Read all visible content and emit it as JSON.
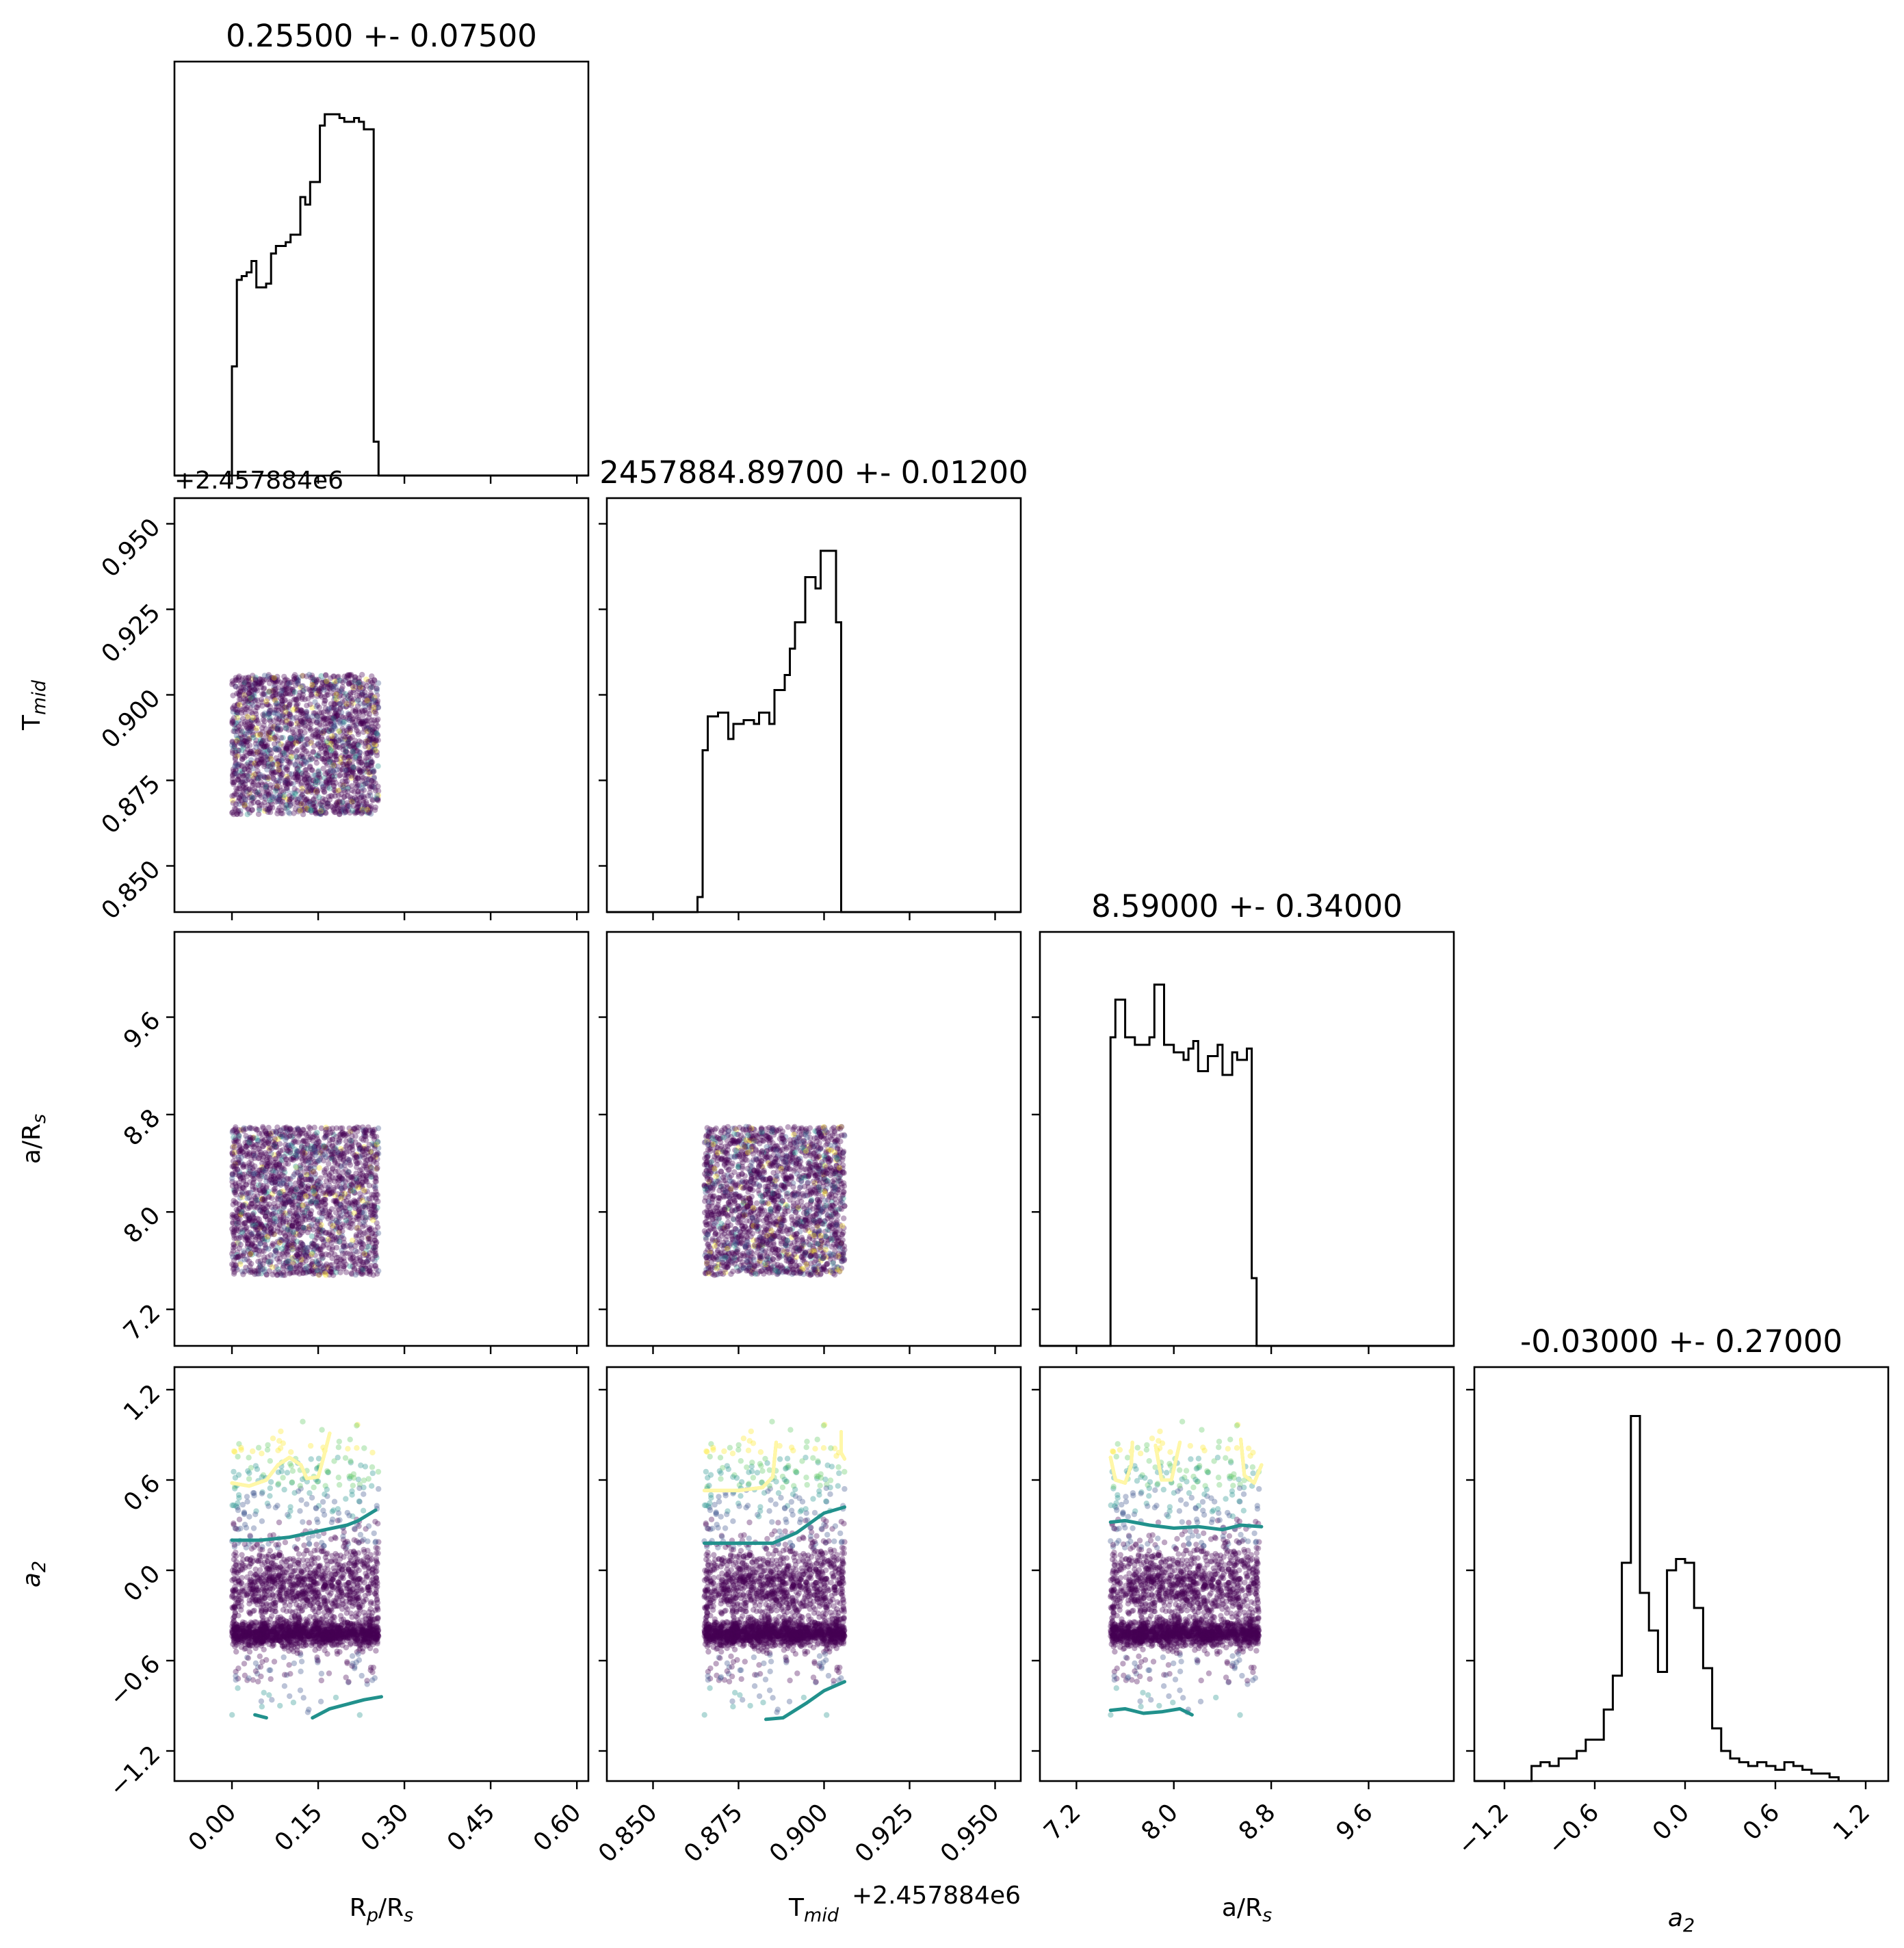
{
  "chart_data": {
    "type": "scatter",
    "subtype": "corner-plot",
    "parameters": [
      {
        "key": "rp",
        "label": "R",
        "label_sub": "p",
        "label_tail": "/R",
        "label_sub2": "s",
        "range": [
          -0.1,
          0.62
        ],
        "ticks": [
          "0.00",
          "0.15",
          "0.30",
          "0.45",
          "0.60"
        ],
        "tick_values": [
          0,
          0.15,
          0.3,
          0.45,
          0.6
        ],
        "title": "0.25500 +- 0.07500",
        "sample_range": [
          0.0,
          0.255
        ]
      },
      {
        "key": "tmid",
        "label": "T",
        "label_sub": "mid",
        "label_tail": "",
        "label_sub2": "",
        "range": [
          0.8365,
          0.9575
        ],
        "ticks": [
          "0.850",
          "0.875",
          "0.900",
          "0.925",
          "0.950"
        ],
        "tick_values": [
          0.85,
          0.875,
          0.9,
          0.925,
          0.95
        ],
        "offset": "+2.457884e6",
        "title": "2457884.89700 +- 0.01200",
        "sample_range": [
          0.865,
          0.906
        ]
      },
      {
        "key": "ars",
        "label": "a/R",
        "label_sub": "s",
        "label_tail": "",
        "label_sub2": "",
        "range": [
          6.9,
          10.3
        ],
        "ticks": [
          "7.2",
          "8.0",
          "8.8",
          "9.6"
        ],
        "tick_values": [
          7.2,
          8.0,
          8.8,
          9.6
        ],
        "title": "8.59000 +- 0.34000",
        "sample_range": [
          7.48,
          8.7
        ]
      },
      {
        "key": "a2",
        "label": "a",
        "label_sub": "2",
        "label_tail": "",
        "label_sub2": "",
        "label_italic": true,
        "range": [
          -1.4,
          1.35
        ],
        "ticks": [
          "−1.2",
          "−0.6",
          "0.0",
          "0.6",
          "1.2"
        ],
        "tick_values": [
          -1.2,
          -0.6,
          0,
          0.6,
          1.2
        ],
        "title": "-0.03000 +- 0.27000",
        "sample_range": [
          -0.97,
          0.99
        ]
      }
    ],
    "histograms": {
      "rp": {
        "bins": [
          0,
          0.0085,
          0.017,
          0.0255,
          0.034,
          0.0425,
          0.051,
          0.0595,
          0.068,
          0.0765,
          0.085,
          0.0935,
          0.102,
          0.1105,
          0.119,
          0.1275,
          0.136,
          0.1445,
          0.153,
          0.1615,
          0.17,
          0.1785,
          0.187,
          0.1955,
          0.204,
          0.2125,
          0.221,
          0.2295,
          0.238,
          0.2465,
          0.255,
          0.2635,
          0.272
        ],
        "counts": [
          0.29,
          0.52,
          0.53,
          0.54,
          0.57,
          0.5,
          0.5,
          0.51,
          0.59,
          0.61,
          0.61,
          0.62,
          0.64,
          0.64,
          0.74,
          0.72,
          0.78,
          0.78,
          0.93,
          0.96,
          0.96,
          0.96,
          0.95,
          0.94,
          0.94,
          0.95,
          0.94,
          0.92,
          0.92,
          0.09,
          0.0,
          0.0
        ]
      },
      "tmid": {
        "bins": [
          0.863,
          0.8645,
          0.866,
          0.8675,
          0.869,
          0.8705,
          0.872,
          0.8735,
          0.875,
          0.8765,
          0.878,
          0.8795,
          0.881,
          0.8825,
          0.884,
          0.8855,
          0.887,
          0.8885,
          0.89,
          0.8915,
          0.893,
          0.8945,
          0.896,
          0.8975,
          0.899,
          0.9005,
          0.902,
          0.9035,
          0.905,
          0.9065
        ],
        "counts": [
          0.04,
          0.43,
          0.52,
          0.52,
          0.53,
          0.53,
          0.46,
          0.5,
          0.5,
          0.51,
          0.51,
          0.5,
          0.53,
          0.53,
          0.5,
          0.59,
          0.59,
          0.63,
          0.7,
          0.77,
          0.77,
          0.89,
          0.89,
          0.86,
          0.96,
          0.96,
          0.96,
          0.77,
          0.0
        ]
      },
      "ars": {
        "bins": [
          7.48,
          7.52,
          7.56,
          7.6,
          7.64,
          7.68,
          7.72,
          7.76,
          7.8,
          7.84,
          7.88,
          7.92,
          7.96,
          8.0,
          8.04,
          8.08,
          8.12,
          8.16,
          8.2,
          8.24,
          8.28,
          8.32,
          8.36,
          8.4,
          8.44,
          8.48,
          8.52,
          8.56,
          8.6,
          8.64,
          8.68,
          8.72
        ],
        "counts": [
          0.82,
          0.92,
          0.92,
          0.82,
          0.82,
          0.8,
          0.8,
          0.8,
          0.82,
          0.96,
          0.96,
          0.8,
          0.8,
          0.78,
          0.78,
          0.76,
          0.79,
          0.81,
          0.73,
          0.73,
          0.77,
          0.77,
          0.8,
          0.72,
          0.72,
          0.78,
          0.76,
          0.76,
          0.79,
          0.18,
          0.0
        ]
      },
      "a2": {
        "bins": [
          -1.08,
          -1.02,
          -0.96,
          -0.9,
          -0.84,
          -0.78,
          -0.72,
          -0.66,
          -0.6,
          -0.54,
          -0.48,
          -0.42,
          -0.36,
          -0.3,
          -0.24,
          -0.18,
          -0.12,
          -0.06,
          0.0,
          0.06,
          0.12,
          0.18,
          0.24,
          0.3,
          0.36,
          0.42,
          0.48,
          0.54,
          0.6,
          0.66,
          0.72,
          0.78,
          0.84,
          0.9,
          0.96,
          1.02
        ],
        "counts": [
          0.0,
          0.04,
          0.05,
          0.04,
          0.06,
          0.06,
          0.08,
          0.11,
          0.11,
          0.19,
          0.28,
          0.58,
          0.97,
          0.5,
          0.4,
          0.29,
          0.56,
          0.59,
          0.58,
          0.46,
          0.3,
          0.14,
          0.08,
          0.06,
          0.05,
          0.04,
          0.05,
          0.04,
          0.03,
          0.05,
          0.04,
          0.03,
          0.02,
          0.02,
          0.01,
          0.0
        ]
      }
    },
    "scatter_colormap": [
      "#440154",
      "#3b528b",
      "#21918c",
      "#5ec962",
      "#fde725"
    ],
    "contours": {
      "rp-a2": {
        "yellow": [
          [
            [
              0.0,
              0.58
            ],
            [
              0.03,
              0.56
            ],
            [
              0.06,
              0.6
            ],
            [
              0.08,
              0.7
            ],
            [
              0.1,
              0.75
            ],
            [
              0.12,
              0.7
            ],
            [
              0.13,
              0.61
            ],
            [
              0.15,
              0.62
            ],
            [
              0.16,
              0.76
            ],
            [
              0.17,
              0.91
            ]
          ]
        ],
        "teal_upper": [
          [
            [
              0.0,
              0.2
            ],
            [
              0.05,
              0.2
            ],
            [
              0.1,
              0.22
            ],
            [
              0.15,
              0.26
            ],
            [
              0.2,
              0.3
            ],
            [
              0.22,
              0.33
            ],
            [
              0.25,
              0.4
            ]
          ]
        ],
        "teal_lower": [
          [
            [
              0.04,
              -0.96
            ],
            [
              0.06,
              -0.98
            ]
          ],
          [
            [
              0.14,
              -0.98
            ],
            [
              0.17,
              -0.92
            ],
            [
              0.21,
              -0.88
            ],
            [
              0.23,
              -0.86
            ],
            [
              0.26,
              -0.84
            ]
          ]
        ]
      },
      "tmid-a2": {
        "yellow": [
          [
            [
              0.865,
              0.53
            ],
            [
              0.875,
              0.53
            ],
            [
              0.882,
              0.55
            ],
            [
              0.885,
              0.62
            ],
            [
              0.886,
              0.85
            ]
          ],
          [
            [
              0.905,
              0.92
            ],
            [
              0.905,
              0.78
            ],
            [
              0.906,
              0.74
            ]
          ]
        ],
        "teal_upper": [
          [
            [
              0.865,
              0.18
            ],
            [
              0.885,
              0.18
            ],
            [
              0.892,
              0.25
            ],
            [
              0.9,
              0.38
            ],
            [
              0.906,
              0.42
            ]
          ]
        ],
        "teal_lower": [
          [
            [
              0.883,
              -0.99
            ],
            [
              0.888,
              -0.98
            ],
            [
              0.895,
              -0.88
            ],
            [
              0.9,
              -0.8
            ],
            [
              0.906,
              -0.74
            ]
          ]
        ]
      },
      "ars-a2": {
        "yellow": [
          [
            [
              7.48,
              0.75
            ],
            [
              7.52,
              0.6
            ],
            [
              7.6,
              0.58
            ],
            [
              7.65,
              0.7
            ],
            [
              7.66,
              0.85
            ]
          ],
          [
            [
              7.85,
              0.83
            ],
            [
              7.9,
              0.6
            ],
            [
              7.98,
              0.6
            ],
            [
              8.05,
              0.85
            ]
          ],
          [
            [
              8.55,
              0.87
            ],
            [
              8.58,
              0.63
            ],
            [
              8.66,
              0.58
            ],
            [
              8.72,
              0.7
            ]
          ]
        ],
        "teal_upper": [
          [
            [
              7.48,
              0.32
            ],
            [
              7.6,
              0.33
            ],
            [
              7.8,
              0.3
            ],
            [
              8.0,
              0.28
            ],
            [
              8.2,
              0.29
            ],
            [
              8.4,
              0.27
            ],
            [
              8.55,
              0.3
            ],
            [
              8.72,
              0.29
            ]
          ]
        ],
        "teal_lower": [
          [
            [
              7.48,
              -0.93
            ],
            [
              7.6,
              -0.92
            ],
            [
              7.75,
              -0.95
            ],
            [
              7.9,
              -0.94
            ],
            [
              8.05,
              -0.92
            ],
            [
              8.15,
              -0.96
            ]
          ]
        ]
      }
    }
  }
}
